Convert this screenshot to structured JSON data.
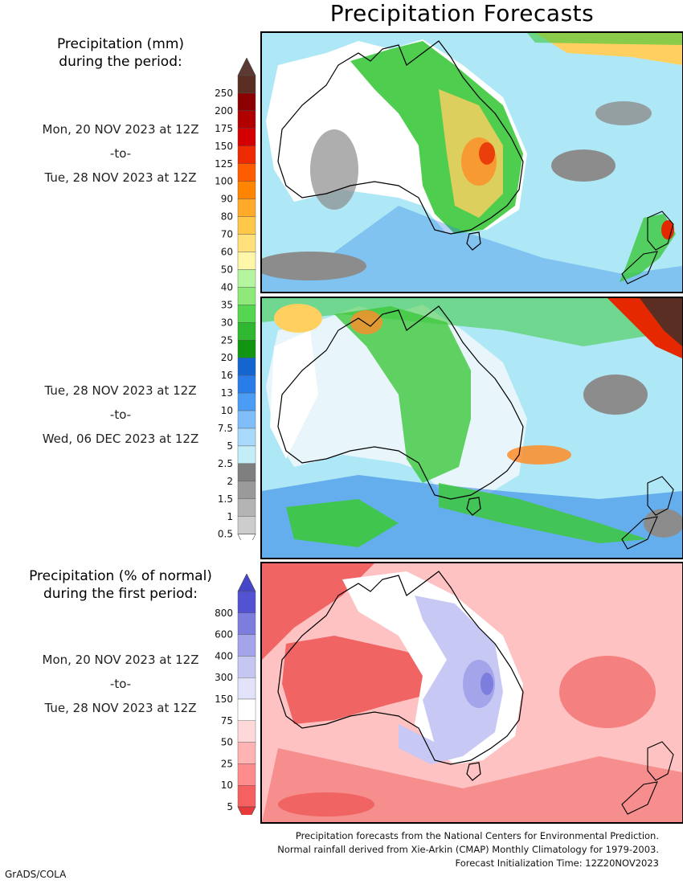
{
  "title": "Precipitation Forecasts",
  "amount_header": [
    "Precipitation (mm)",
    "during the period:"
  ],
  "period1": {
    "start": "Mon, 20 NOV 2023 at 12Z",
    "sep": "-to-",
    "end": "Tue, 28 NOV 2023 at 12Z"
  },
  "period2": {
    "start": "Tue, 28 NOV 2023 at 12Z",
    "sep": "-to-",
    "end": "Wed, 06 DEC 2023 at 12Z"
  },
  "percent_header": [
    "Precipitation (% of normal)",
    "during the first period:"
  ],
  "period3": {
    "start": "Mon, 20 NOV 2023 at 12Z",
    "sep": "-to-",
    "end": "Tue, 28 NOV 2023 at 12Z"
  },
  "amount_scale": {
    "labels": [
      "250",
      "200",
      "175",
      "150",
      "125",
      "100",
      "90",
      "80",
      "70",
      "60",
      "50",
      "40",
      "35",
      "30",
      "25",
      "20",
      "16",
      "13",
      "10",
      "7.5",
      "5",
      "2.5",
      "2",
      "1.5",
      "1",
      "0.5"
    ],
    "colors": [
      "#5a2e23",
      "#8b0000",
      "#b00000",
      "#d40000",
      "#ee2a00",
      "#ff5c00",
      "#ff8400",
      "#ffaa2a",
      "#ffc848",
      "#ffe07a",
      "#fff6aa",
      "#b6f5a0",
      "#8ee97a",
      "#56d650",
      "#30b830",
      "#129612",
      "#1565d0",
      "#2a7de8",
      "#4b9cf4",
      "#7fbef8",
      "#a9d9fb",
      "#c3eef8",
      "#7f7f7f",
      "#9a9a9a",
      "#b4b4b4",
      "#cdcdcd"
    ],
    "top_cap": "#5a3a33",
    "bottom_cap": "#ffffff"
  },
  "percent_scale": {
    "labels": [
      "800",
      "600",
      "400",
      "300",
      "150",
      "75",
      "50",
      "25",
      "10",
      "5"
    ],
    "colors": [
      "#5252d2",
      "#7d7dde",
      "#a4a4ea",
      "#c6c6f2",
      "#e2e2fa",
      "#ffffff",
      "#ffd9d9",
      "#ffb3b3",
      "#ff8c8c",
      "#f56060"
    ],
    "top_cap": "#4646c8",
    "bottom_cap": "#e83a3a"
  },
  "footer": [
    "Precipitation forecasts from the National Centers for Environmental Prediction.",
    "Normal rainfall derived from Xie-Arkin (CMAP) Monthly Climatology for 1979-2003.",
    "Forecast Initialization Time: 12Z20NOV2023"
  ],
  "credit": "GrADS/COLA",
  "map_colors": {
    "ocean_light": "#aee8f6",
    "land_dry": "#ffffff",
    "gray": "#8c8c8c",
    "green": "#3cc83c",
    "blue": "#2a7de8",
    "orange": "#ff8c28",
    "red": "#e62800",
    "pct_red": "#f06464",
    "pct_pink": "#ffc2c2",
    "pct_blue": "#c8c8f4"
  }
}
